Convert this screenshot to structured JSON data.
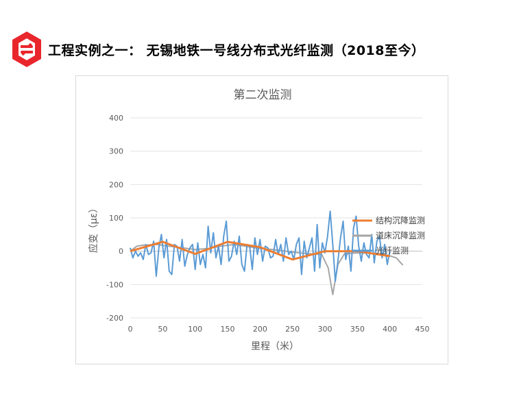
{
  "header": {
    "title": "工程实例之一： 无锡地铁一号线分布式光纤监测（2018至今）",
    "logo_icon": "red-hexagon-logo-icon",
    "logo_color": "#e8262c"
  },
  "chart_data": {
    "type": "line",
    "title": "第二次监测",
    "xlabel": "里程（米）",
    "ylabel": "应变（με）",
    "xlim": [
      0,
      450
    ],
    "ylim": [
      -200,
      400
    ],
    "xticks": [
      0,
      50,
      100,
      150,
      200,
      250,
      300,
      350,
      400,
      450
    ],
    "yticks": [
      -200,
      -100,
      0,
      100,
      200,
      300,
      400
    ],
    "grid": true,
    "legend_position": "right",
    "series": [
      {
        "name": "结构沉降监测",
        "color": "#ed7d31",
        "x": [
          0,
          50,
          100,
          150,
          200,
          250,
          300,
          350,
          400
        ],
        "y": [
          0,
          28,
          -8,
          28,
          12,
          -25,
          0,
          0,
          -15
        ]
      },
      {
        "name": "道床沉降监测",
        "color": "#a5a5a5",
        "x": [
          0,
          10,
          20,
          40,
          60,
          80,
          100,
          120,
          140,
          160,
          180,
          200,
          220,
          240,
          260,
          280,
          295,
          305,
          312,
          320,
          330,
          350,
          370,
          390,
          410,
          420
        ],
        "y": [
          0,
          15,
          18,
          20,
          15,
          10,
          5,
          8,
          15,
          20,
          14,
          8,
          5,
          0,
          -5,
          -8,
          -10,
          -50,
          -130,
          -40,
          -8,
          -5,
          -6,
          -8,
          -20,
          -42
        ]
      },
      {
        "name": "光纤监测",
        "color": "#5b9bd5",
        "x": [
          0,
          4,
          8,
          12,
          16,
          20,
          24,
          28,
          32,
          36,
          40,
          44,
          48,
          52,
          56,
          60,
          64,
          68,
          72,
          76,
          80,
          84,
          88,
          92,
          96,
          100,
          104,
          108,
          112,
          116,
          120,
          124,
          128,
          132,
          136,
          140,
          144,
          148,
          152,
          156,
          160,
          164,
          168,
          172,
          176,
          180,
          184,
          188,
          192,
          196,
          200,
          204,
          208,
          212,
          216,
          220,
          224,
          228,
          232,
          236,
          240,
          244,
          248,
          252,
          256,
          260,
          264,
          268,
          272,
          276,
          280,
          284,
          288,
          292,
          296,
          300,
          304,
          308,
          312,
          316,
          320,
          324,
          328,
          332,
          336,
          340,
          344,
          348,
          352,
          356,
          360,
          364,
          368,
          372,
          376,
          380,
          384,
          388,
          392,
          396,
          400
        ],
        "y": [
          10,
          -20,
          0,
          -15,
          -5,
          -25,
          20,
          -10,
          -5,
          30,
          -75,
          10,
          50,
          -20,
          35,
          -60,
          -70,
          20,
          15,
          -30,
          35,
          -45,
          -10,
          10,
          20,
          -55,
          25,
          -40,
          -10,
          -50,
          75,
          -5,
          55,
          -20,
          15,
          -40,
          45,
          90,
          -30,
          -15,
          30,
          -10,
          45,
          -40,
          -60,
          20,
          15,
          -55,
          40,
          -10,
          35,
          -30,
          15,
          10,
          -20,
          -15,
          35,
          -10,
          20,
          -30,
          40,
          -10,
          0,
          -25,
          20,
          40,
          -70,
          30,
          -20,
          10,
          40,
          -60,
          80,
          -50,
          25,
          -5,
          45,
          120,
          20,
          -90,
          -30,
          40,
          90,
          -25,
          15,
          -60,
          70,
          105,
          15,
          -30,
          25,
          -10,
          -20,
          50,
          -35,
          30,
          45,
          -20,
          20,
          -40,
          0
        ]
      }
    ]
  }
}
